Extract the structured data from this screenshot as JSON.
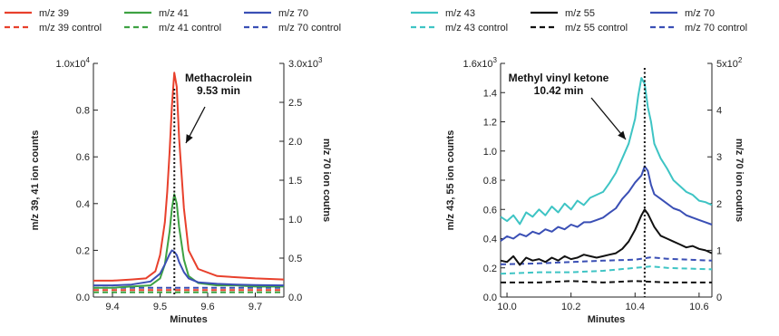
{
  "chart_data": [
    {
      "type": "line",
      "xlabel": "Minutes",
      "ylabel": "m/z 39, 41 ion counts",
      "y2label": "m/z 70 ion coutns",
      "xlim": [
        9.36,
        9.76
      ],
      "ylim": [
        0,
        1.0
      ],
      "y2lim": [
        0,
        3.0
      ],
      "x_ticks": [
        "9.4",
        "9.5",
        "9.6",
        "9.7"
      ],
      "y_ticks": [
        "0.0",
        "0.2",
        "0.4",
        "0.6",
        "0.8",
        "1.0x10"
      ],
      "y_top_exp": "4",
      "y2_ticks": [
        "0.0",
        "0.5",
        "1.0",
        "1.5",
        "2.0",
        "2.5",
        "3.0x10"
      ],
      "y2_top_exp": "3",
      "annotation": {
        "name": "Methacrolein",
        "time": "9.53 min",
        "x": 9.53
      },
      "legend": [
        {
          "label": "m/z 39",
          "color": "#e8402c",
          "dashed": false
        },
        {
          "label": "m/z 41",
          "color": "#3ea243",
          "dashed": false
        },
        {
          "label": "m/z 70",
          "color": "#3a4fb5",
          "dashed": false
        },
        {
          "label": "m/z 39 control",
          "color": "#e8402c",
          "dashed": true
        },
        {
          "label": "m/z 41 control",
          "color": "#3ea243",
          "dashed": true
        },
        {
          "label": "m/z 70 control",
          "color": "#3a4fb5",
          "dashed": true
        }
      ],
      "series": [
        {
          "name": "m/z 39",
          "color": "#e8402c",
          "dashed": false,
          "axis": "left",
          "x": [
            9.36,
            9.4,
            9.44,
            9.47,
            9.49,
            9.5,
            9.51,
            9.515,
            9.52,
            9.525,
            9.53,
            9.535,
            9.54,
            9.55,
            9.56,
            9.58,
            9.62,
            9.66,
            9.7,
            9.76
          ],
          "y": [
            0.07,
            0.07,
            0.075,
            0.08,
            0.11,
            0.18,
            0.32,
            0.45,
            0.62,
            0.82,
            0.96,
            0.9,
            0.68,
            0.38,
            0.2,
            0.12,
            0.09,
            0.085,
            0.08,
            0.075
          ]
        },
        {
          "name": "m/z 41",
          "color": "#3ea243",
          "dashed": false,
          "axis": "left",
          "x": [
            9.36,
            9.4,
            9.44,
            9.48,
            9.5,
            9.51,
            9.52,
            9.525,
            9.53,
            9.535,
            9.54,
            9.55,
            9.56,
            9.58,
            9.62,
            9.66,
            9.7,
            9.76
          ],
          "y": [
            0.04,
            0.04,
            0.045,
            0.05,
            0.08,
            0.14,
            0.28,
            0.38,
            0.44,
            0.4,
            0.3,
            0.16,
            0.09,
            0.06,
            0.05,
            0.05,
            0.045,
            0.045
          ]
        },
        {
          "name": "m/z 70",
          "color": "#3a4fb5",
          "dashed": false,
          "axis": "right",
          "x": [
            9.36,
            9.4,
            9.44,
            9.48,
            9.5,
            9.51,
            9.52,
            9.525,
            9.53,
            9.535,
            9.54,
            9.55,
            9.56,
            9.58,
            9.62,
            9.66,
            9.7,
            9.76
          ],
          "y": [
            0.15,
            0.15,
            0.16,
            0.2,
            0.3,
            0.42,
            0.55,
            0.6,
            0.58,
            0.54,
            0.45,
            0.32,
            0.24,
            0.19,
            0.17,
            0.16,
            0.155,
            0.15
          ]
        },
        {
          "name": "m/z 39 control",
          "color": "#e8402c",
          "dashed": true,
          "axis": "left",
          "x": [
            9.36,
            9.76
          ],
          "y": [
            0.03,
            0.03
          ]
        },
        {
          "name": "m/z 41 control",
          "color": "#3ea243",
          "dashed": true,
          "axis": "left",
          "x": [
            9.36,
            9.76
          ],
          "y": [
            0.02,
            0.02
          ]
        },
        {
          "name": "m/z 70 control",
          "color": "#3a4fb5",
          "dashed": true,
          "axis": "right",
          "x": [
            9.36,
            9.76
          ],
          "y": [
            0.12,
            0.12
          ]
        }
      ]
    },
    {
      "type": "line",
      "xlabel": "Minutes",
      "ylabel": "m/z 43, 55 ion counts",
      "y2label": "m/z 70 ion coutns",
      "xlim": [
        9.98,
        10.64
      ],
      "ylim": [
        0,
        1.6
      ],
      "y2lim": [
        0,
        5
      ],
      "x_ticks": [
        "10.0",
        "10.2",
        "10.4",
        "10.6"
      ],
      "y_ticks": [
        "0.0",
        "0.2",
        "0.4",
        "0.6",
        "0.8",
        "1.0",
        "1.2",
        "1.4",
        "1.6x10"
      ],
      "y_top_exp": "3",
      "y2_ticks": [
        "0",
        "1",
        "2",
        "3",
        "4",
        "5x10"
      ],
      "y2_top_exp": "2",
      "annotation": {
        "name": "Methyl vinyl ketone",
        "time": "10.42 min",
        "x": 10.43
      },
      "legend": [
        {
          "label": "m/z 43",
          "color": "#3ec4c4",
          "dashed": false
        },
        {
          "label": "m/z 55",
          "color": "#111111",
          "dashed": false
        },
        {
          "label": "m/z 70",
          "color": "#3a4fb5",
          "dashed": false
        },
        {
          "label": "m/z 43 control",
          "color": "#3ec4c4",
          "dashed": true
        },
        {
          "label": "m/z 55 control",
          "color": "#111111",
          "dashed": true
        },
        {
          "label": "m/z 70 control",
          "color": "#3a4fb5",
          "dashed": true
        }
      ],
      "series": [
        {
          "name": "m/z 43",
          "color": "#3ec4c4",
          "dashed": false,
          "axis": "left",
          "x": [
            9.98,
            10.0,
            10.02,
            10.04,
            10.06,
            10.08,
            10.1,
            10.12,
            10.14,
            10.16,
            10.18,
            10.2,
            10.22,
            10.24,
            10.26,
            10.28,
            10.3,
            10.32,
            10.34,
            10.36,
            10.38,
            10.4,
            10.41,
            10.42,
            10.43,
            10.44,
            10.45,
            10.46,
            10.48,
            10.5,
            10.52,
            10.54,
            10.56,
            10.58,
            10.6,
            10.62,
            10.64
          ],
          "y": [
            0.55,
            0.52,
            0.56,
            0.5,
            0.58,
            0.55,
            0.6,
            0.56,
            0.62,
            0.58,
            0.64,
            0.6,
            0.66,
            0.63,
            0.68,
            0.7,
            0.72,
            0.78,
            0.85,
            0.95,
            1.05,
            1.22,
            1.38,
            1.5,
            1.46,
            1.3,
            1.2,
            1.05,
            0.95,
            0.88,
            0.8,
            0.76,
            0.72,
            0.7,
            0.66,
            0.65,
            0.63
          ]
        },
        {
          "name": "m/z 55",
          "color": "#111111",
          "dashed": false,
          "axis": "left",
          "x": [
            9.98,
            10.0,
            10.02,
            10.04,
            10.06,
            10.08,
            10.1,
            10.12,
            10.14,
            10.16,
            10.18,
            10.2,
            10.22,
            10.24,
            10.26,
            10.28,
            10.3,
            10.32,
            10.34,
            10.36,
            10.38,
            10.4,
            10.42,
            10.43,
            10.44,
            10.46,
            10.48,
            10.5,
            10.52,
            10.54,
            10.56,
            10.58,
            10.6,
            10.62,
            10.64
          ],
          "y": [
            0.25,
            0.24,
            0.28,
            0.22,
            0.27,
            0.25,
            0.26,
            0.24,
            0.27,
            0.25,
            0.28,
            0.26,
            0.27,
            0.29,
            0.28,
            0.27,
            0.28,
            0.29,
            0.3,
            0.33,
            0.38,
            0.46,
            0.56,
            0.6,
            0.57,
            0.48,
            0.42,
            0.4,
            0.38,
            0.36,
            0.34,
            0.35,
            0.33,
            0.32,
            0.3
          ]
        },
        {
          "name": "m/z 70",
          "color": "#3a4fb5",
          "dashed": false,
          "axis": "right",
          "x": [
            9.98,
            10.0,
            10.02,
            10.04,
            10.06,
            10.08,
            10.1,
            10.12,
            10.14,
            10.16,
            10.18,
            10.2,
            10.22,
            10.24,
            10.26,
            10.28,
            10.3,
            10.32,
            10.34,
            10.36,
            10.38,
            10.4,
            10.42,
            10.43,
            10.44,
            10.45,
            10.46,
            10.48,
            10.5,
            10.52,
            10.54,
            10.56,
            10.58,
            10.6,
            10.62,
            10.64
          ],
          "y": [
            1.2,
            1.3,
            1.25,
            1.35,
            1.3,
            1.4,
            1.35,
            1.45,
            1.4,
            1.5,
            1.45,
            1.55,
            1.5,
            1.6,
            1.6,
            1.65,
            1.7,
            1.8,
            1.9,
            2.1,
            2.25,
            2.45,
            2.6,
            2.8,
            2.7,
            2.4,
            2.2,
            2.1,
            2.0,
            1.9,
            1.85,
            1.75,
            1.7,
            1.65,
            1.6,
            1.55
          ]
        },
        {
          "name": "m/z 43 control",
          "color": "#3ec4c4",
          "dashed": true,
          "axis": "left",
          "x": [
            9.98,
            10.1,
            10.2,
            10.3,
            10.4,
            10.45,
            10.5,
            10.64
          ],
          "y": [
            0.16,
            0.17,
            0.17,
            0.18,
            0.2,
            0.21,
            0.2,
            0.19
          ]
        },
        {
          "name": "m/z 55 control",
          "color": "#111111",
          "dashed": true,
          "axis": "left",
          "x": [
            9.98,
            10.1,
            10.2,
            10.3,
            10.4,
            10.5,
            10.64
          ],
          "y": [
            0.1,
            0.1,
            0.11,
            0.1,
            0.11,
            0.1,
            0.1
          ]
        },
        {
          "name": "m/z 70 control",
          "color": "#3a4fb5",
          "dashed": true,
          "axis": "right",
          "x": [
            9.98,
            10.1,
            10.2,
            10.3,
            10.4,
            10.45,
            10.5,
            10.64
          ],
          "y": [
            0.7,
            0.72,
            0.75,
            0.78,
            0.8,
            0.85,
            0.82,
            0.78
          ]
        }
      ]
    }
  ]
}
